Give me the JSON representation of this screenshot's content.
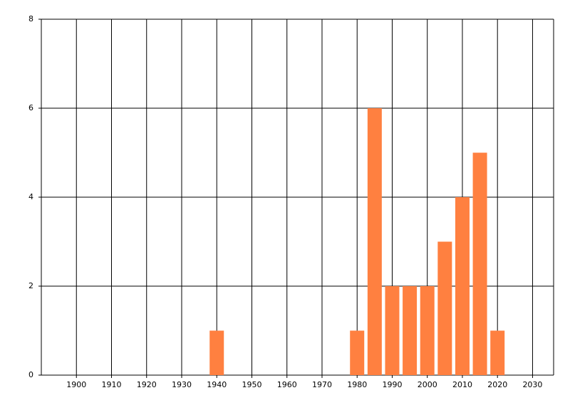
{
  "chart_data": {
    "type": "bar",
    "x": [
      1940,
      1980,
      1985,
      1990,
      1995,
      2000,
      2005,
      2010,
      2015,
      2020
    ],
    "values": [
      1,
      1,
      6,
      2,
      2,
      2,
      3,
      4,
      5,
      1
    ],
    "color": "#ff8040",
    "xlim": [
      1890,
      2036
    ],
    "xticks": [
      1900,
      1910,
      1920,
      1930,
      1940,
      1950,
      1960,
      1970,
      1980,
      1990,
      2000,
      2010,
      2020,
      2030
    ],
    "ylim": [
      0,
      8
    ],
    "yticks": [
      0,
      2,
      4,
      6,
      8
    ],
    "grid": true
  }
}
